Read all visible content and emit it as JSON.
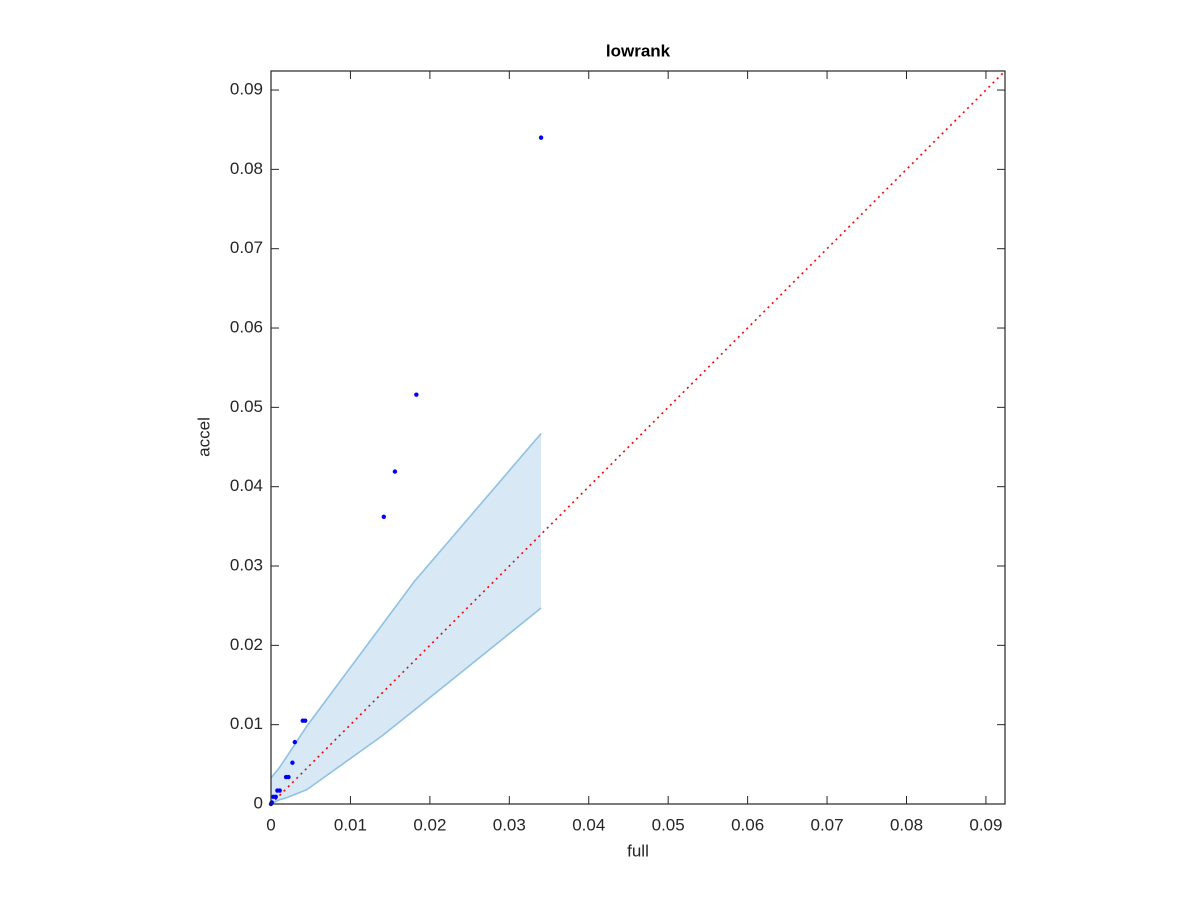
{
  "chart_data": {
    "type": "scatter",
    "title": "lowrank",
    "xlabel": "full",
    "ylabel": "accel",
    "xlim": [
      0,
      0.0924
    ],
    "ylim": [
      0,
      0.0924
    ],
    "xticks": [
      0,
      0.01,
      0.02,
      0.03,
      0.04,
      0.05,
      0.06,
      0.07,
      0.08,
      0.09
    ],
    "yticks": [
      0,
      0.01,
      0.02,
      0.03,
      0.04,
      0.05,
      0.06,
      0.07,
      0.08,
      0.09
    ],
    "band": {
      "color": "#8fc1e3",
      "x": [
        0,
        0.001,
        0.002,
        0.0045,
        0.014,
        0.018,
        0.034
      ],
      "upper": [
        0.0033,
        0.0045,
        0.006,
        0.0098,
        0.0226,
        0.028,
        0.0467
      ],
      "lower": [
        0,
        0.0005,
        0.0008,
        0.0018,
        0.0086,
        0.0118,
        0.0247
      ]
    },
    "reference": {
      "color": "#ff0000",
      "x": [
        0,
        0.0924
      ],
      "values": [
        0,
        0.0924
      ]
    },
    "points": {
      "color": "#0000ff",
      "x": [
        0.034,
        0.0183,
        0.0156,
        0.0142,
        0.0043,
        0.004,
        0.003,
        0.0027,
        0.0022,
        0.0019,
        0.0011,
        0.0008,
        0.0006,
        0.0003,
        0.0001,
        0
      ],
      "values": [
        0.084,
        0.0516,
        0.0419,
        0.0362,
        0.0105,
        0.0105,
        0.0078,
        0.0052,
        0.0034,
        0.0034,
        0.0017,
        0.0017,
        0.0009,
        0.0009,
        0.0002,
        0
      ]
    }
  }
}
